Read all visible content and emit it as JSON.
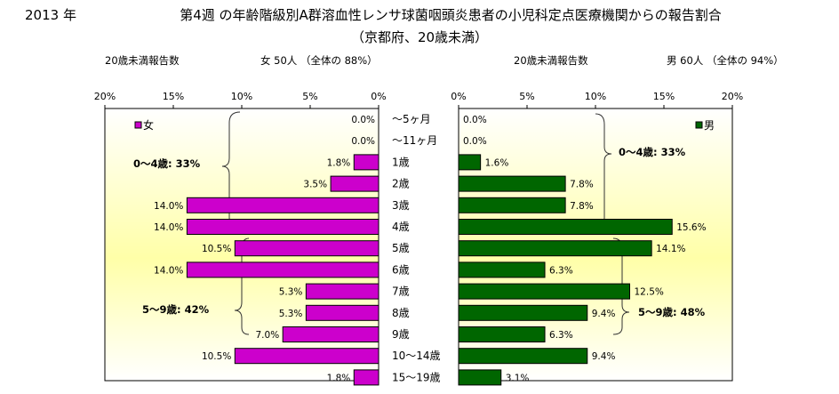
{
  "header": {
    "year": "2013 年",
    "title_line1": "第4週 の年齢階級別A群溶血性レンサ球菌咽頭炎患者の小児科定点医療機関からの報告割合",
    "title_line2": "（京都府、20歳未満）",
    "left_caption": "20歳未満報告数",
    "left_summary": "女  50人 （全体の  88%）",
    "right_caption": "20歳未満報告数",
    "right_summary": "男  60人 （全体の  94%）"
  },
  "chart_data": {
    "type": "bar",
    "orientation": "horizontal-population-pyramid",
    "categories": [
      "～5ヶ月",
      "～11ヶ月",
      "1歳",
      "2歳",
      "3歳",
      "4歳",
      "5歳",
      "6歳",
      "7歳",
      "8歳",
      "9歳",
      "10～14歳",
      "15～19歳"
    ],
    "series": [
      {
        "name": "女",
        "color": "#cc00cc",
        "values": [
          0.0,
          0.0,
          1.8,
          3.5,
          14.0,
          14.0,
          10.5,
          14.0,
          5.3,
          5.3,
          7.0,
          10.5,
          1.8
        ],
        "labels": [
          "0.0%",
          "0.0%",
          "1.8%",
          "3.5%",
          "14.0%",
          "14.0%",
          "10.5%",
          "14.0%",
          "5.3%",
          "5.3%",
          "7.0%",
          "10.5%",
          "1.8%"
        ]
      },
      {
        "name": "男",
        "color": "#006600",
        "values": [
          0.0,
          0.0,
          1.6,
          7.8,
          7.8,
          15.6,
          14.1,
          6.3,
          12.5,
          9.4,
          6.3,
          9.4,
          3.1
        ],
        "labels": [
          "0.0%",
          "0.0%",
          "1.6%",
          "7.8%",
          "7.8%",
          "15.6%",
          "14.1%",
          "6.3%",
          "12.5%",
          "9.4%",
          "6.3%",
          "9.4%",
          "3.1%"
        ]
      }
    ],
    "xlim": [
      0,
      20
    ],
    "left_ticks": [
      "20%",
      "15%",
      "10%",
      "5%",
      "0%"
    ],
    "right_ticks": [
      "0%",
      "5%",
      "10%",
      "15%",
      "20%"
    ],
    "annotations": {
      "female_0_4": "0～4歳: 33%",
      "female_5_9": "5～9歳: 42%",
      "male_0_4": "0～4歳: 33%",
      "male_5_9": "5～9歳: 48%"
    },
    "legend_position": "top-inside",
    "background": "yellow-gradient"
  }
}
